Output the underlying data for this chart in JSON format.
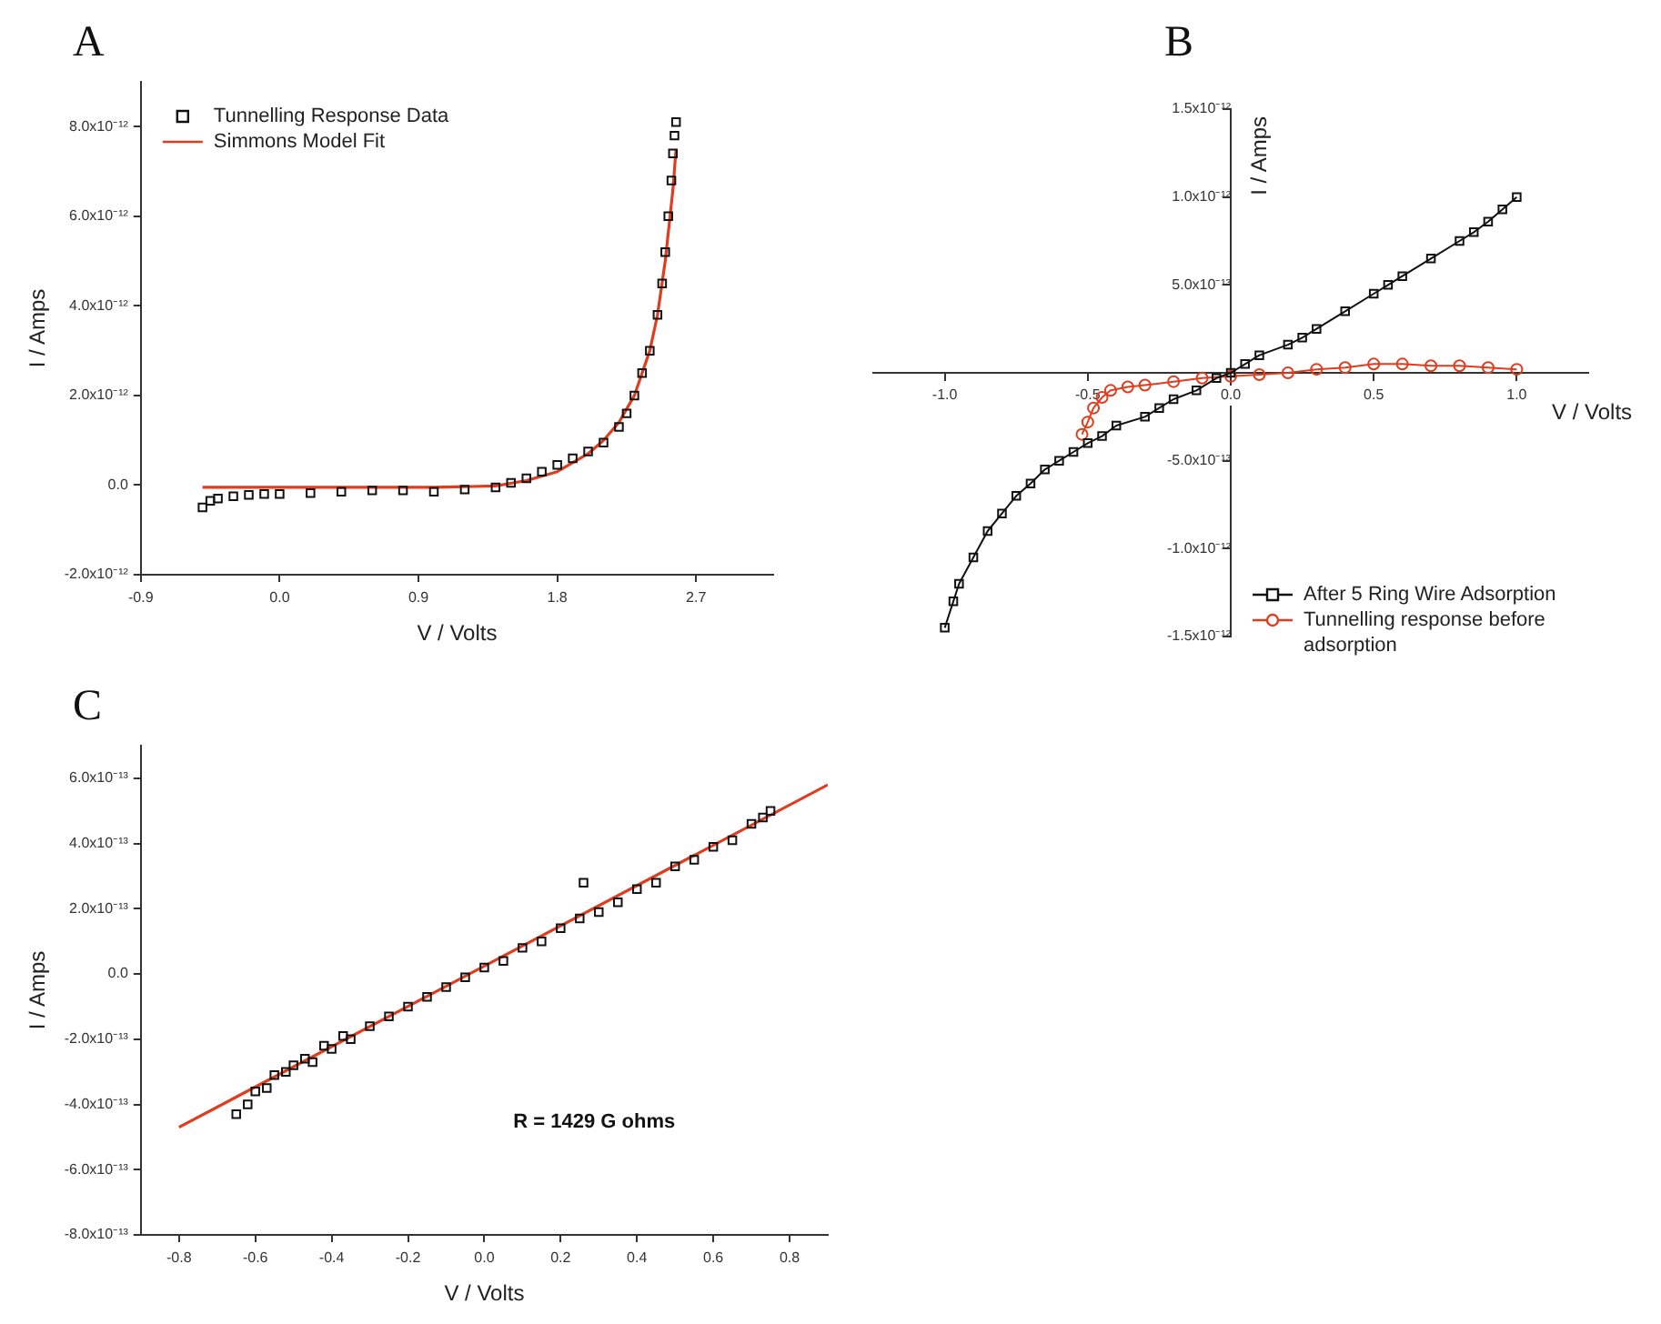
{
  "chart_data": [
    {
      "type": "scatter",
      "title": "A",
      "xlabel": "V / Volts",
      "ylabel": "I / Amps",
      "xlim": [
        -0.9,
        3.2
      ],
      "ylim": [
        -2e-12,
        9e-12
      ],
      "xticks": [
        -0.9,
        {
          "value": 0,
          "label": "0.0"
        },
        0.9,
        1.8,
        2.7
      ],
      "yticks": [
        {
          "value": -2e-12,
          "label": "-2.0x10⁻¹²"
        },
        {
          "value": 0,
          "label": "0.0"
        },
        {
          "value": 2e-12,
          "label": "2.0x10⁻¹²"
        },
        {
          "value": 4e-12,
          "label": "4.0x10⁻¹²"
        },
        {
          "value": 6e-12,
          "label": "6.0x10⁻¹²"
        },
        {
          "value": 8e-12,
          "label": "8.0x10⁻¹²"
        }
      ],
      "legend": "top left",
      "grid": false,
      "series": [
        {
          "name": "Tunnelling Response Data",
          "marker": "square",
          "color": "#111111",
          "x": [
            -0.5,
            -0.45,
            -0.4,
            -0.3,
            -0.2,
            -0.1,
            0,
            0.2,
            0.4,
            0.6,
            0.8,
            1.0,
            1.2,
            1.4,
            1.5,
            1.6,
            1.7,
            1.8,
            1.9,
            2.0,
            2.1,
            2.2,
            2.25,
            2.3,
            2.35,
            2.4,
            2.45,
            2.48,
            2.5,
            2.52,
            2.54,
            2.55,
            2.56,
            2.57
          ],
          "values": [
            -5e-13,
            -3.5e-13,
            -3e-13,
            -2.5e-13,
            -2.2e-13,
            -2e-13,
            -2e-13,
            -1.8e-13,
            -1.5e-13,
            -1.2e-13,
            -1.2e-13,
            -1.5e-13,
            -1e-13,
            -5e-14,
            5e-14,
            1.5e-13,
            3e-13,
            4.5e-13,
            6e-13,
            7.5e-13,
            9.5e-13,
            1.3e-12,
            1.6e-12,
            2e-12,
            2.5e-12,
            3e-12,
            3.8e-12,
            4.5e-12,
            5.2e-12,
            6e-12,
            6.8e-12,
            7.4e-12,
            7.8e-12,
            8.1e-12
          ]
        },
        {
          "name": "Simmons Model Fit",
          "type": "line",
          "marker": "none",
          "color": "#e03c1e",
          "x": [
            -0.5,
            0,
            0.5,
            1.0,
            1.4,
            1.6,
            1.8,
            2.0,
            2.1,
            2.2,
            2.3,
            2.4,
            2.45,
            2.5,
            2.55,
            2.57
          ],
          "values": [
            -5e-14,
            -5e-14,
            -5e-14,
            -5e-14,
            -2e-14,
            1e-13,
            3e-13,
            7e-13,
            1e-12,
            1.4e-12,
            2e-12,
            3e-12,
            3.8e-12,
            5e-12,
            6.6e-12,
            7.5e-12
          ]
        }
      ]
    },
    {
      "type": "line",
      "title": "B",
      "xlabel": "V / Volts",
      "ylabel": "I / Amps",
      "xlim": [
        -1.25,
        1.25
      ],
      "ylim": [
        -1.5e-12,
        1.5e-12
      ],
      "xticks": [
        {
          "value": -1,
          "label": "-1.0"
        },
        -0.5,
        {
          "value": 0,
          "label": "0.0"
        },
        0.5,
        {
          "value": 1,
          "label": "1.0"
        }
      ],
      "yticks": [
        {
          "value": -1.5e-12,
          "label": "-1.5x10⁻¹²"
        },
        {
          "value": -1e-12,
          "label": "-1.0x10⁻¹²"
        },
        {
          "value": -5e-13,
          "label": "-5.0x10⁻¹³"
        },
        {
          "value": 5e-13,
          "label": "5.0x10⁻¹³"
        },
        {
          "value": 1e-12,
          "label": "1.0x10⁻¹²"
        },
        {
          "value": 1.5e-12,
          "label": "1.5x10⁻¹²"
        }
      ],
      "legend": "bottom right",
      "grid": false,
      "series": [
        {
          "name": "After 5 Ring Wire Adsorption",
          "marker": "square",
          "color": "#111111",
          "x": [
            -1.0,
            -0.97,
            -0.95,
            -0.9,
            -0.85,
            -0.8,
            -0.75,
            -0.7,
            -0.65,
            -0.6,
            -0.55,
            -0.5,
            -0.45,
            -0.4,
            -0.3,
            -0.25,
            -0.2,
            -0.12,
            -0.05,
            0,
            0.05,
            0.1,
            0.2,
            0.25,
            0.3,
            0.4,
            0.5,
            0.55,
            0.6,
            0.7,
            0.8,
            0.85,
            0.9,
            0.95,
            1.0
          ],
          "values": [
            -1.45e-12,
            -1.3e-12,
            -1.2e-12,
            -1.05e-12,
            -9e-13,
            -8e-13,
            -7e-13,
            -6.3e-13,
            -5.5e-13,
            -5e-13,
            -4.5e-13,
            -4e-13,
            -3.6e-13,
            -3e-13,
            -2.5e-13,
            -2e-13,
            -1.5e-13,
            -1e-13,
            -3e-14,
            0,
            5e-14,
            1e-13,
            1.6e-13,
            2e-13,
            2.5e-13,
            3.5e-13,
            4.5e-13,
            5e-13,
            5.5e-13,
            6.5e-13,
            7.5e-13,
            8e-13,
            8.6e-13,
            9.3e-13,
            1e-12
          ]
        },
        {
          "name": "Tunnelling response before adsorption",
          "marker": "circle",
          "color": "#e03c1e",
          "x": [
            -0.52,
            -0.5,
            -0.48,
            -0.45,
            -0.42,
            -0.36,
            -0.3,
            -0.2,
            -0.1,
            0,
            0.1,
            0.2,
            0.3,
            0.4,
            0.5,
            0.6,
            0.7,
            0.8,
            0.9,
            1.0
          ],
          "values": [
            -3.5e-13,
            -2.8e-13,
            -2e-13,
            -1.4e-13,
            -1e-13,
            -8e-14,
            -7e-14,
            -5e-14,
            -3e-14,
            -2e-14,
            -1e-14,
            0,
            2e-14,
            3e-14,
            5e-14,
            5e-14,
            4e-14,
            4e-14,
            3e-14,
            2e-14
          ]
        }
      ]
    },
    {
      "type": "scatter",
      "title": "C",
      "xlabel": "V / Volts",
      "ylabel": "I / Amps",
      "xlim": [
        -0.9,
        0.9
      ],
      "ylim": [
        -8e-13,
        7e-13
      ],
      "xticks": [
        {
          "value": -0.8,
          "label": "-0.8"
        },
        -0.6,
        -0.4,
        -0.2,
        {
          "value": 0,
          "label": "0.0"
        },
        0.2,
        0.4,
        0.6,
        0.8
      ],
      "yticks": [
        {
          "value": -8e-13,
          "label": "-8.0x10⁻¹³"
        },
        {
          "value": -6e-13,
          "label": "-6.0x10⁻¹³"
        },
        {
          "value": -4e-13,
          "label": "-4.0x10⁻¹³"
        },
        {
          "value": -2e-13,
          "label": "-2.0x10⁻¹³"
        },
        {
          "value": 0,
          "label": "0.0"
        },
        {
          "value": 2e-13,
          "label": "2.0x10⁻¹³"
        },
        {
          "value": 4e-13,
          "label": "4.0x10⁻¹³"
        },
        {
          "value": 6e-13,
          "label": "6.0x10⁻¹³"
        }
      ],
      "grid": false,
      "annotations": [
        "R = 1429 G ohms"
      ],
      "series": [
        {
          "marker": "square",
          "color": "#111111",
          "x": [
            -0.65,
            -0.62,
            -0.6,
            -0.57,
            -0.55,
            -0.52,
            -0.5,
            -0.47,
            -0.45,
            -0.42,
            -0.4,
            -0.37,
            -0.35,
            -0.3,
            -0.25,
            -0.2,
            -0.15,
            -0.1,
            -0.05,
            0,
            0.05,
            0.1,
            0.15,
            0.2,
            0.25,
            0.26,
            0.3,
            0.35,
            0.4,
            0.45,
            0.5,
            0.55,
            0.6,
            0.65,
            0.7,
            0.73,
            0.75
          ],
          "values": [
            -4.3e-13,
            -4e-13,
            -3.6e-13,
            -3.5e-13,
            -3.1e-13,
            -3e-13,
            -2.8e-13,
            -2.6e-13,
            -2.7e-13,
            -2.2e-13,
            -2.3e-13,
            -1.9e-13,
            -2e-13,
            -1.6e-13,
            -1.3e-13,
            -1e-13,
            -7e-14,
            -4e-14,
            -1e-14,
            2e-14,
            4e-14,
            8e-14,
            1e-13,
            1.4e-13,
            1.7e-13,
            2.8e-13,
            1.9e-13,
            2.2e-13,
            2.6e-13,
            2.8e-13,
            3.3e-13,
            3.5e-13,
            3.9e-13,
            4.1e-13,
            4.6e-13,
            4.8e-13,
            5e-13
          ]
        },
        {
          "type": "line",
          "marker": "none",
          "color": "#e03c1e",
          "x": [
            -0.8,
            0.9
          ],
          "values": [
            -4.7e-13,
            5.8e-13
          ]
        }
      ]
    }
  ]
}
